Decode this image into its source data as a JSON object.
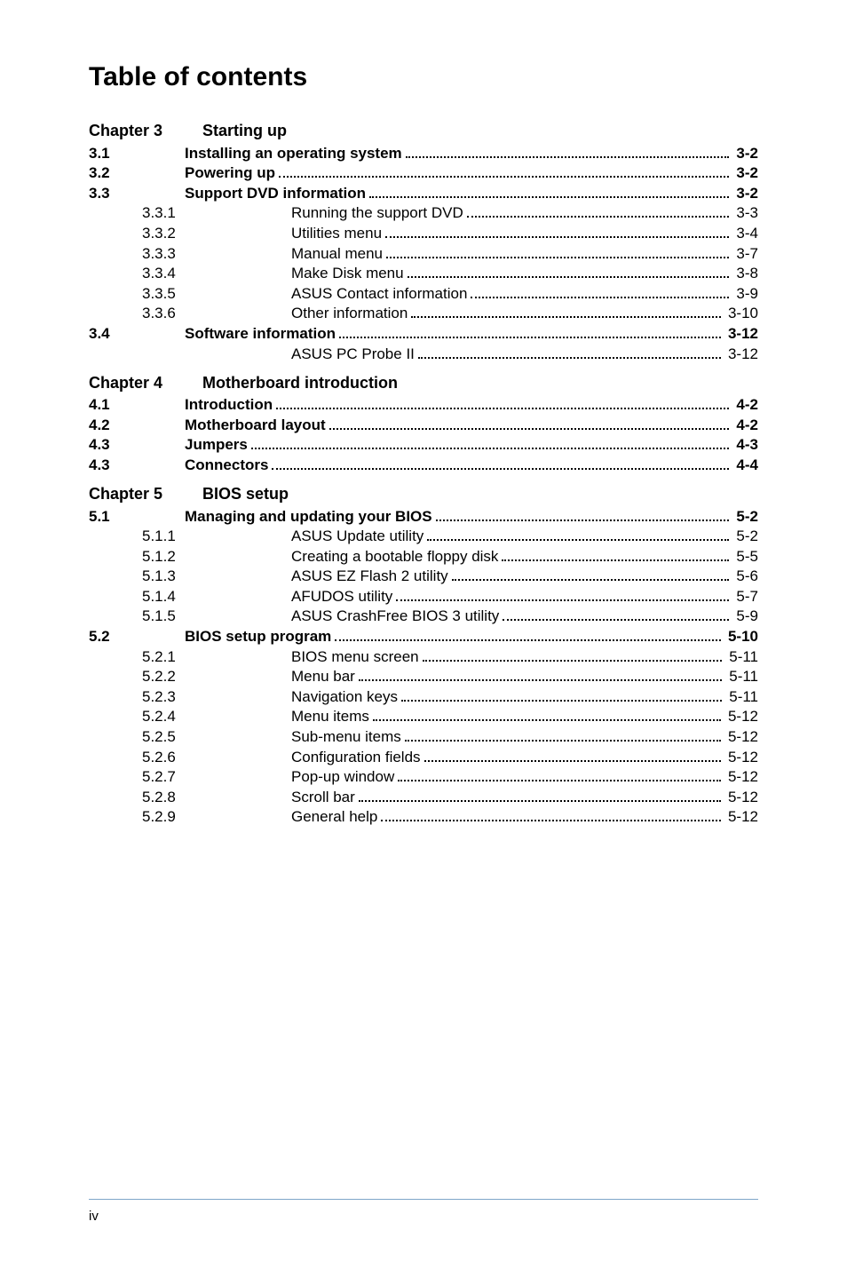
{
  "title": "Table of contents",
  "page_number": "iv",
  "styles": {
    "page_bg": "#ffffff",
    "text_color": "#000000",
    "divider_color": "#7ea6c9",
    "font_family": "Arial",
    "title_fontsize": 30,
    "body_fontsize": 17,
    "chapter_fontsize": 18
  },
  "chapters": [
    {
      "label": "Chapter 3",
      "title": "Starting up",
      "entries": [
        {
          "num": "3.1",
          "label": "Installing an operating system",
          "page": "3-2",
          "bold": true
        },
        {
          "num": "3.2",
          "label": "Powering up",
          "page": "3-2",
          "bold": true
        },
        {
          "num": "3.3",
          "label": "Support DVD information",
          "page": "3-2",
          "bold": true
        },
        {
          "num": "3.3.1",
          "label": "Running the support DVD",
          "page": "3-3",
          "sub": true
        },
        {
          "num": "3.3.2",
          "label": "Utilities menu",
          "page": "3-4",
          "sub": true
        },
        {
          "num": "3.3.3",
          "label": "Manual menu",
          "page": "3-7",
          "sub": true
        },
        {
          "num": "3.3.4",
          "label": "Make Disk menu",
          "page": "3-8",
          "sub": true
        },
        {
          "num": "3.3.5",
          "label": "ASUS Contact information",
          "page": "3-9",
          "sub": true
        },
        {
          "num": "3.3.6",
          "label": "Other information",
          "page": "3-10",
          "sub": true
        },
        {
          "num": "3.4",
          "label": "Software information",
          "page": "3-12",
          "bold": true
        },
        {
          "num": "",
          "label": "ASUS PC Probe II",
          "page": "3-12",
          "sub": true
        }
      ]
    },
    {
      "label": "Chapter 4",
      "title": "Motherboard introduction",
      "entries": [
        {
          "num": "4.1",
          "label": "Introduction",
          "page": "4-2",
          "bold": true
        },
        {
          "num": "4.2",
          "label": "Motherboard layout",
          "page": "4-2",
          "bold": true
        },
        {
          "num": "4.3",
          "label": "Jumpers",
          "page": "4-3",
          "bold": true
        },
        {
          "num": "4.3",
          "label": "Connectors",
          "page": "4-4",
          "bold": true
        }
      ]
    },
    {
      "label": "Chapter 5",
      "title": "BIOS setup",
      "entries": [
        {
          "num": "5.1",
          "label": "Managing and updating your BIOS",
          "page": "5-2",
          "bold": true
        },
        {
          "num": "5.1.1",
          "label": "ASUS Update utility",
          "page": "5-2",
          "sub": true
        },
        {
          "num": "5.1.2",
          "label": "Creating a bootable floppy disk",
          "page": "5-5",
          "sub": true
        },
        {
          "num": "5.1.3",
          "label": "ASUS EZ Flash 2 utility",
          "page": "5-6",
          "sub": true
        },
        {
          "num": "5.1.4",
          "label": "AFUDOS utility",
          "page": "5-7",
          "sub": true
        },
        {
          "num": "5.1.5",
          "label": "ASUS CrashFree BIOS 3 utility",
          "page": "5-9",
          "sub": true
        },
        {
          "num": "5.2",
          "label": "BIOS setup program",
          "page": "5-10",
          "bold": true
        },
        {
          "num": "5.2.1",
          "label": "BIOS menu screen",
          "page": "5-11",
          "sub": true
        },
        {
          "num": "5.2.2",
          "label": "Menu bar",
          "page": "5-11",
          "sub": true
        },
        {
          "num": "5.2.3",
          "label": "Navigation keys",
          "page": "5-11",
          "sub": true
        },
        {
          "num": "5.2.4",
          "label": "Menu items",
          "page": "5-12",
          "sub": true
        },
        {
          "num": "5.2.5",
          "label": "Sub-menu items",
          "page": "5-12",
          "sub": true
        },
        {
          "num": "5.2.6",
          "label": "Configuration fields",
          "page": "5-12",
          "sub": true
        },
        {
          "num": "5.2.7",
          "label": "Pop-up window",
          "page": "5-12",
          "sub": true
        },
        {
          "num": "5.2.8",
          "label": "Scroll bar",
          "page": "5-12",
          "sub": true
        },
        {
          "num": "5.2.9",
          "label": "General help",
          "page": "5-12",
          "sub": true
        }
      ]
    }
  ]
}
